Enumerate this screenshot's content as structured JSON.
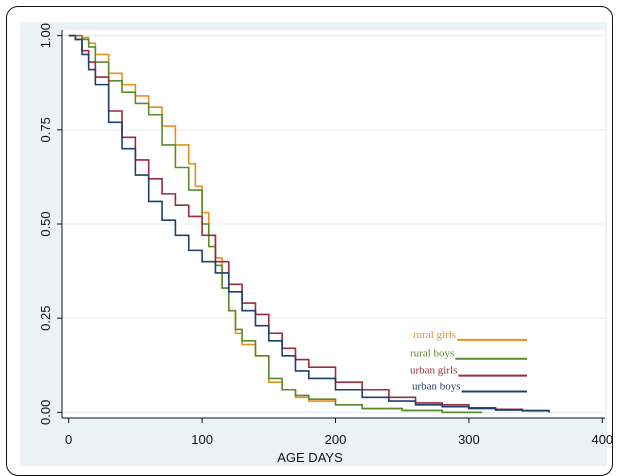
{
  "chart_data": {
    "type": "line",
    "title": "",
    "xlabel": "AGE DAYS",
    "ylabel": "",
    "xlim": [
      -5,
      402
    ],
    "ylim": [
      -0.015,
      1.015
    ],
    "x_ticks": [
      0,
      100,
      200,
      300,
      400
    ],
    "x_tick_labels": [
      "0",
      "100",
      "200",
      "300",
      "400"
    ],
    "y_ticks": [
      0,
      0.25,
      0.5,
      0.75,
      1
    ],
    "y_tick_labels": [
      "0.00",
      "0.25",
      "0.50",
      "0.75",
      "1.00"
    ],
    "grid": true,
    "legend_position": "bottom-right",
    "series": [
      {
        "name": "rural girls",
        "color": "#e8901c",
        "x": [
          0,
          5,
          10,
          15,
          20,
          30,
          40,
          50,
          60,
          70,
          80,
          90,
          95,
          100,
          105,
          110,
          115,
          120,
          125,
          130,
          140,
          150,
          160,
          170,
          180,
          200,
          220,
          250,
          280,
          310
        ],
        "y": [
          1.0,
          1.0,
          0.995,
          0.98,
          0.95,
          0.9,
          0.87,
          0.84,
          0.81,
          0.76,
          0.71,
          0.66,
          0.6,
          0.53,
          0.47,
          0.41,
          0.33,
          0.27,
          0.21,
          0.18,
          0.15,
          0.08,
          0.06,
          0.04,
          0.03,
          0.02,
          0.01,
          0.005,
          0.0,
          0.0
        ]
      },
      {
        "name": "rural boys",
        "color": "#5a8a2e",
        "x": [
          0,
          5,
          10,
          15,
          20,
          30,
          40,
          50,
          60,
          70,
          80,
          90,
          100,
          105,
          110,
          115,
          120,
          125,
          130,
          140,
          150,
          160,
          170,
          180,
          200,
          220,
          250,
          280,
          310
        ],
        "y": [
          1.0,
          1.0,
          0.99,
          0.97,
          0.93,
          0.88,
          0.85,
          0.82,
          0.79,
          0.71,
          0.65,
          0.59,
          0.5,
          0.44,
          0.39,
          0.33,
          0.27,
          0.22,
          0.19,
          0.15,
          0.09,
          0.06,
          0.045,
          0.035,
          0.02,
          0.01,
          0.005,
          0.0,
          0.0
        ]
      },
      {
        "name": "urban girls",
        "color": "#9e2a3a",
        "x": [
          0,
          5,
          10,
          15,
          20,
          30,
          40,
          50,
          60,
          70,
          80,
          90,
          100,
          110,
          120,
          130,
          140,
          150,
          160,
          170,
          180,
          200,
          220,
          240,
          260,
          280,
          300,
          320,
          340,
          360
        ],
        "y": [
          1.0,
          0.99,
          0.96,
          0.93,
          0.89,
          0.8,
          0.73,
          0.67,
          0.62,
          0.58,
          0.55,
          0.52,
          0.47,
          0.4,
          0.34,
          0.29,
          0.26,
          0.21,
          0.17,
          0.14,
          0.12,
          0.08,
          0.06,
          0.04,
          0.025,
          0.02,
          0.012,
          0.008,
          0.005,
          0.0
        ]
      },
      {
        "name": "urban boys",
        "color": "#1f3f6e",
        "x": [
          0,
          5,
          10,
          15,
          20,
          30,
          40,
          50,
          60,
          70,
          80,
          90,
          100,
          110,
          120,
          130,
          140,
          150,
          160,
          170,
          180,
          200,
          220,
          240,
          260,
          280,
          300,
          320,
          340,
          360
        ],
        "y": [
          1.0,
          0.99,
          0.95,
          0.91,
          0.87,
          0.77,
          0.7,
          0.63,
          0.56,
          0.51,
          0.47,
          0.43,
          0.4,
          0.37,
          0.32,
          0.27,
          0.23,
          0.19,
          0.15,
          0.11,
          0.09,
          0.06,
          0.04,
          0.03,
          0.02,
          0.015,
          0.01,
          0.006,
          0.004,
          0.0
        ]
      }
    ]
  }
}
